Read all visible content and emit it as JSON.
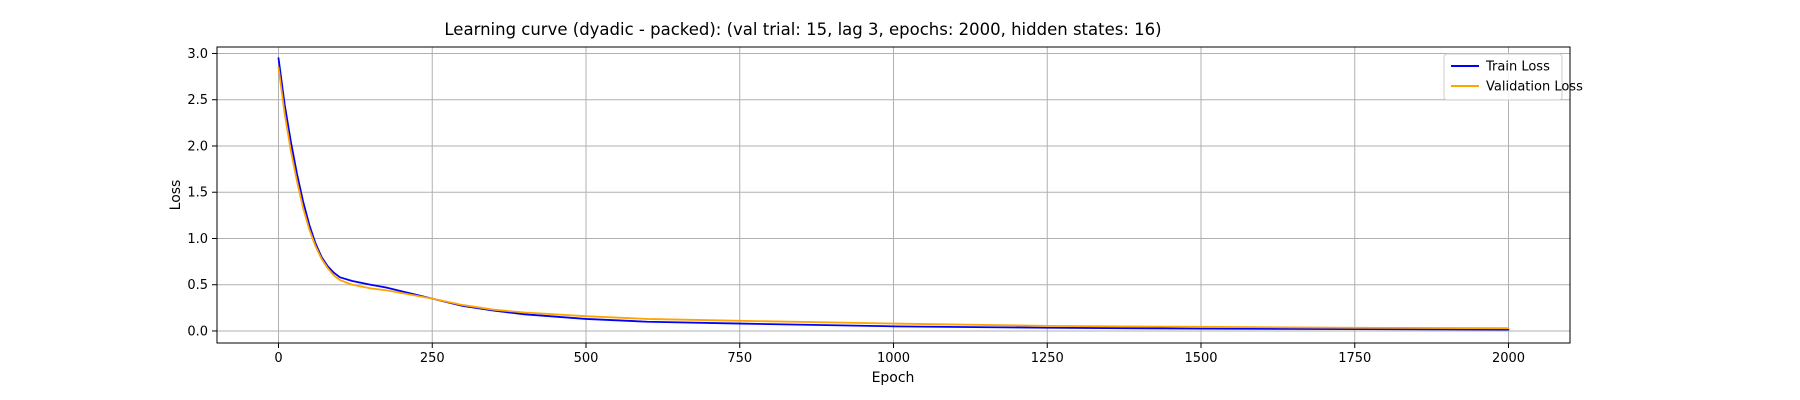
{
  "chart_data": {
    "type": "line",
    "title": "Learning curve (dyadic - packed): (val trial: 15, lag 3, epochs: 2000, hidden states: 16)",
    "xlabel": "Epoch",
    "ylabel": "Loss",
    "xlim": [
      -100,
      2100
    ],
    "ylim": [
      -0.13,
      3.07
    ],
    "xticks": [
      0,
      250,
      500,
      750,
      1000,
      1250,
      1500,
      1750,
      2000
    ],
    "xtick_labels": [
      "0",
      "250",
      "500",
      "750",
      "1000",
      "1250",
      "1500",
      "1750",
      "2000"
    ],
    "yticks": [
      0.0,
      0.5,
      1.0,
      1.5,
      2.0,
      2.5,
      3.0
    ],
    "ytick_labels": [
      "0.0",
      "0.5",
      "1.0",
      "1.5",
      "2.0",
      "2.5",
      "3.0"
    ],
    "grid": true,
    "legend": {
      "placement": "top-right"
    },
    "series": [
      {
        "name": "Train Loss",
        "color": "#0000ff",
        "x": [
          0,
          10,
          20,
          30,
          40,
          50,
          60,
          70,
          80,
          90,
          100,
          120,
          150,
          175,
          200,
          250,
          300,
          350,
          400,
          500,
          600,
          750,
          1000,
          1250,
          1500,
          1750,
          2000
        ],
        "y": [
          2.95,
          2.45,
          2.05,
          1.7,
          1.4,
          1.15,
          0.95,
          0.8,
          0.7,
          0.63,
          0.58,
          0.54,
          0.5,
          0.47,
          0.43,
          0.35,
          0.27,
          0.22,
          0.18,
          0.13,
          0.1,
          0.08,
          0.05,
          0.035,
          0.025,
          0.02,
          0.015
        ]
      },
      {
        "name": "Validation Loss",
        "color": "#ffa500",
        "x": [
          0,
          10,
          20,
          30,
          40,
          50,
          60,
          70,
          80,
          90,
          100,
          120,
          150,
          175,
          200,
          250,
          300,
          350,
          400,
          500,
          600,
          750,
          1000,
          1250,
          1500,
          1750,
          2000
        ],
        "y": [
          2.85,
          2.35,
          1.95,
          1.62,
          1.33,
          1.1,
          0.92,
          0.78,
          0.68,
          0.6,
          0.55,
          0.5,
          0.46,
          0.44,
          0.41,
          0.35,
          0.28,
          0.23,
          0.2,
          0.16,
          0.13,
          0.11,
          0.08,
          0.055,
          0.045,
          0.035,
          0.03
        ]
      }
    ]
  }
}
